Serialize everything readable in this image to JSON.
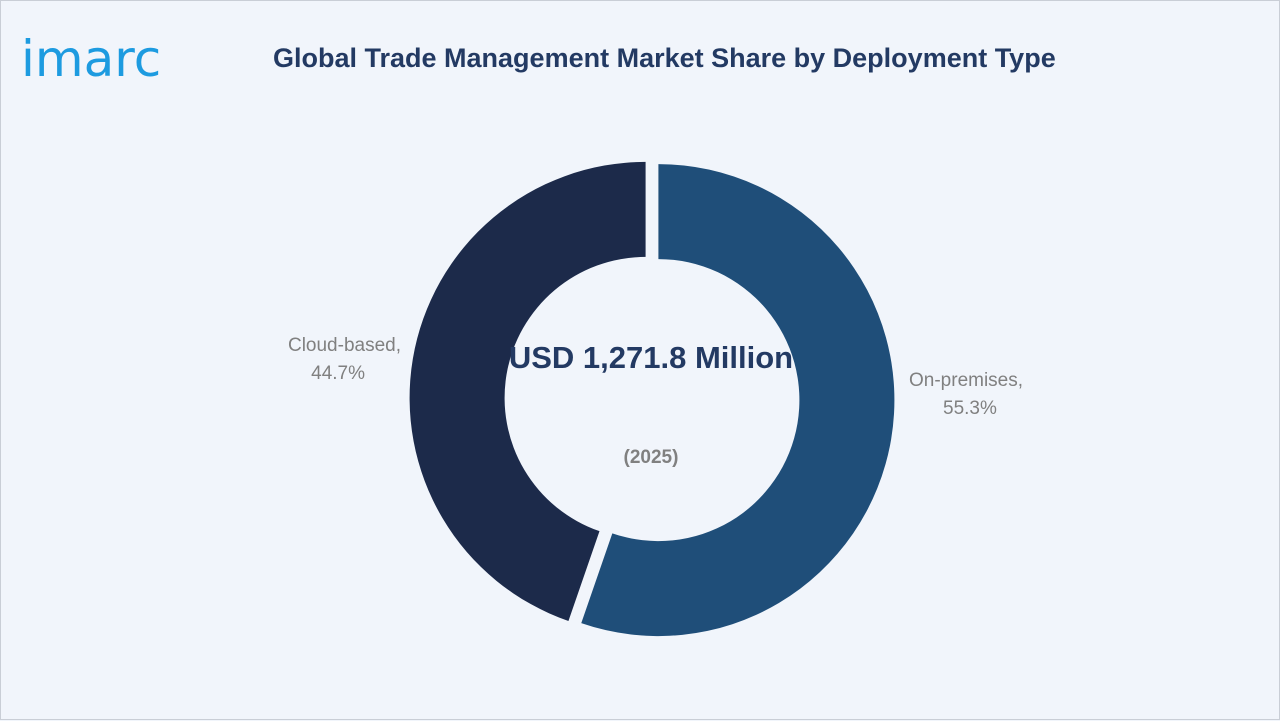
{
  "brand": {
    "logo_text": "imarc"
  },
  "chart_data": {
    "type": "pie",
    "title": "Global Trade Management Market Share by Deployment Type",
    "slices": [
      {
        "label": "On-premises",
        "value": 55.3,
        "display": "55.3%",
        "color": "#1f4e79"
      },
      {
        "label": "Cloud-based",
        "value": 44.7,
        "display": "44.7%",
        "color": "#1c2a4a"
      }
    ],
    "center_label": {
      "value": "USD 1,271.8 Million",
      "year": "(2025)"
    },
    "colors": {
      "title": "#233a63",
      "labels": "#808080",
      "background": "#f1f5fb",
      "logo": "#1d9be0"
    }
  }
}
